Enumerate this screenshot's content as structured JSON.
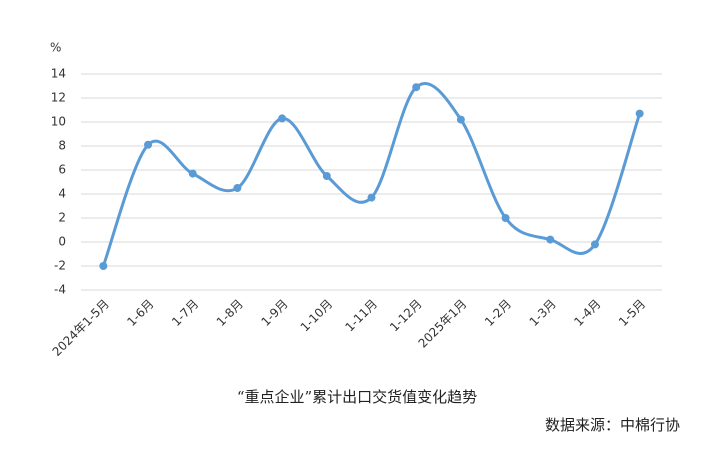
{
  "chart_data": {
    "type": "line",
    "unit": "%",
    "categories": [
      "2024年1-5月",
      "1-6月",
      "1-7月",
      "1-8月",
      "1-9月",
      "1-10月",
      "1-11月",
      "1-12月",
      "2025年1月",
      "1-2月",
      "1-3月",
      "1-4月",
      "1-5月"
    ],
    "series": [
      {
        "name": "重点企业累计出口交货值",
        "color": "#5b9bd5",
        "values": [
          -2.0,
          8.1,
          5.7,
          4.5,
          10.3,
          5.5,
          3.7,
          12.9,
          10.2,
          2.0,
          0.2,
          -0.2,
          10.7
        ]
      }
    ],
    "ylim": [
      -4,
      14
    ],
    "yticks": [
      -4,
      -2,
      0,
      2,
      4,
      6,
      8,
      10,
      12,
      14
    ],
    "grid": true,
    "caption": "“重点企业”累计出口交货值变化趋势",
    "source": "数据来源：中棉行协"
  }
}
